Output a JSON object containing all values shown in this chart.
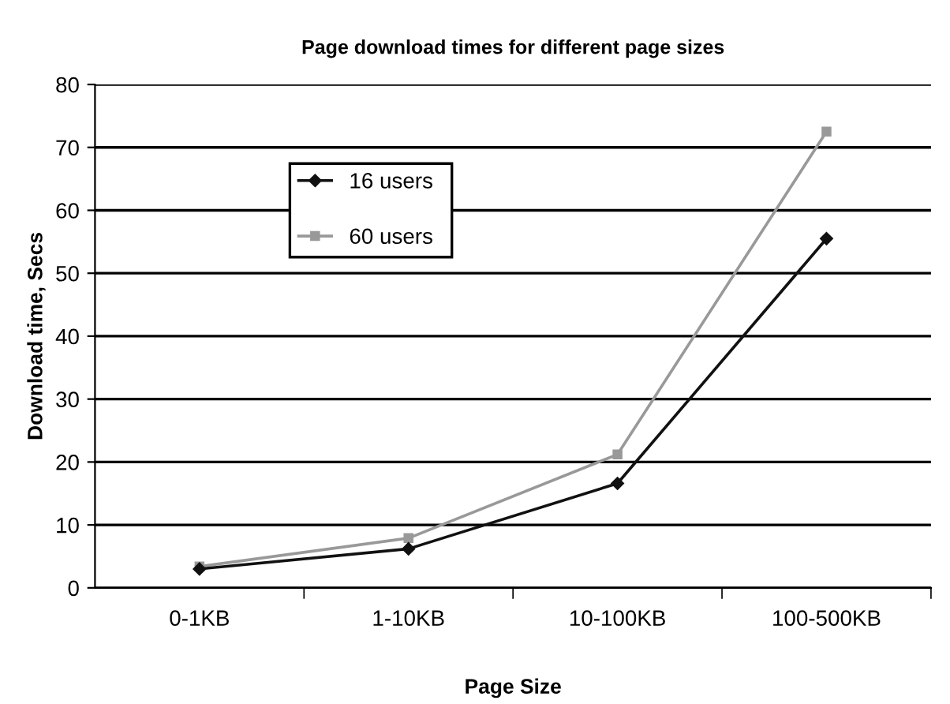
{
  "chart_data": {
    "type": "line",
    "title": "Page download times for different page sizes",
    "xlabel": "Page Size",
    "ylabel": "Download time, Secs",
    "categories": [
      "0-1KB",
      "1-10KB",
      "10-100KB",
      "100-500KB"
    ],
    "series": [
      {
        "name": "16 users",
        "color": "#111111",
        "marker": "diamond",
        "values": [
          3.0,
          6.2,
          16.6,
          55.5
        ]
      },
      {
        "name": "60 users",
        "color": "#999999",
        "marker": "square",
        "values": [
          3.4,
          7.9,
          21.2,
          72.5
        ]
      }
    ],
    "ylim": [
      0,
      80
    ],
    "yticks": [
      0,
      10,
      20,
      30,
      40,
      50,
      60,
      70,
      80
    ],
    "grid": "y",
    "legend": "top",
    "line_style": "solid"
  }
}
